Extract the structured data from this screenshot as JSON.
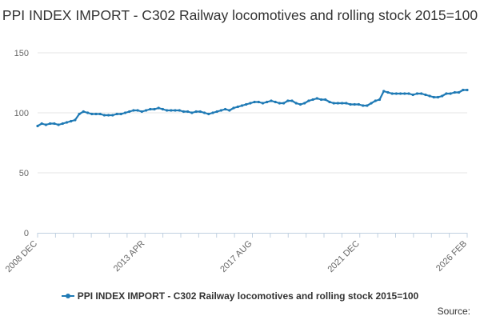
{
  "chart_data": {
    "type": "line",
    "title": "PPI INDEX IMPORT - C302 Railway locomotives and rolling stock 2015=100",
    "xlabel": "",
    "ylabel": "",
    "ylim": [
      0,
      150
    ],
    "yticks": [
      0,
      50,
      100,
      150
    ],
    "xtick_labels": [
      "2008 DEC",
      "2013 APR",
      "2017 AUG",
      "2021 DEC",
      "2026 FEB"
    ],
    "grid": true,
    "legend_position": "bottom",
    "series": [
      {
        "name": "PPI INDEX IMPORT - C302 Railway locomotives and rolling stock 2015=100",
        "color": "#1f7ab5",
        "x": [
          "2008-12",
          "2009-02",
          "2009-04",
          "2009-06",
          "2009-08",
          "2009-10",
          "2009-12",
          "2010-02",
          "2010-04",
          "2010-06",
          "2010-08",
          "2010-10",
          "2010-12",
          "2011-02",
          "2011-04",
          "2011-06",
          "2011-08",
          "2011-10",
          "2011-12",
          "2012-02",
          "2012-04",
          "2012-06",
          "2012-08",
          "2012-10",
          "2012-12",
          "2013-02",
          "2013-04",
          "2013-06",
          "2013-08",
          "2013-10",
          "2013-12",
          "2014-02",
          "2014-04",
          "2014-06",
          "2014-08",
          "2014-10",
          "2014-12",
          "2015-02",
          "2015-04",
          "2015-06",
          "2015-08",
          "2015-10",
          "2015-12",
          "2016-02",
          "2016-04",
          "2016-06",
          "2016-08",
          "2016-10",
          "2016-12",
          "2017-02",
          "2017-04",
          "2017-06",
          "2017-08",
          "2017-10",
          "2017-12",
          "2018-02",
          "2018-04",
          "2018-06",
          "2018-08",
          "2018-10",
          "2018-12",
          "2019-02",
          "2019-04",
          "2019-06",
          "2019-08",
          "2019-10",
          "2019-12",
          "2020-02",
          "2020-04",
          "2020-06",
          "2020-08",
          "2020-10",
          "2020-12",
          "2021-02",
          "2021-04",
          "2021-06",
          "2021-08",
          "2021-10",
          "2021-12",
          "2022-02",
          "2022-04",
          "2022-06",
          "2022-08",
          "2022-10",
          "2022-12",
          "2023-02",
          "2023-04",
          "2023-06",
          "2023-08",
          "2023-10",
          "2023-12",
          "2024-02",
          "2024-04",
          "2024-06",
          "2024-08",
          "2024-10",
          "2024-12",
          "2025-02",
          "2025-04",
          "2025-06",
          "2025-08",
          "2025-10",
          "2025-12",
          "2026-02"
        ],
        "values": [
          89,
          91,
          90,
          91,
          91,
          90,
          91,
          92,
          93,
          94,
          99,
          101,
          100,
          99,
          99,
          99,
          98,
          98,
          98,
          99,
          99,
          100,
          101,
          102,
          102,
          101,
          102,
          103,
          103,
          104,
          103,
          102,
          102,
          102,
          102,
          101,
          101,
          100,
          101,
          101,
          100,
          99,
          100,
          101,
          102,
          103,
          102,
          104,
          105,
          106,
          107,
          108,
          109,
          109,
          108,
          109,
          110,
          109,
          108,
          108,
          110,
          110,
          108,
          107,
          108,
          110,
          111,
          112,
          111,
          111,
          109,
          108,
          108,
          108,
          108,
          107,
          107,
          107,
          106,
          106,
          108,
          110,
          111,
          118,
          117,
          116,
          116,
          116,
          116,
          116,
          115,
          116,
          116,
          115,
          114,
          113,
          113,
          114,
          116,
          116,
          117,
          117,
          119,
          119
        ]
      }
    ]
  },
  "legend": {
    "label": "PPI INDEX IMPORT - C302 Railway locomotives and rolling stock 2015=100"
  },
  "source": {
    "label": "Source:"
  }
}
